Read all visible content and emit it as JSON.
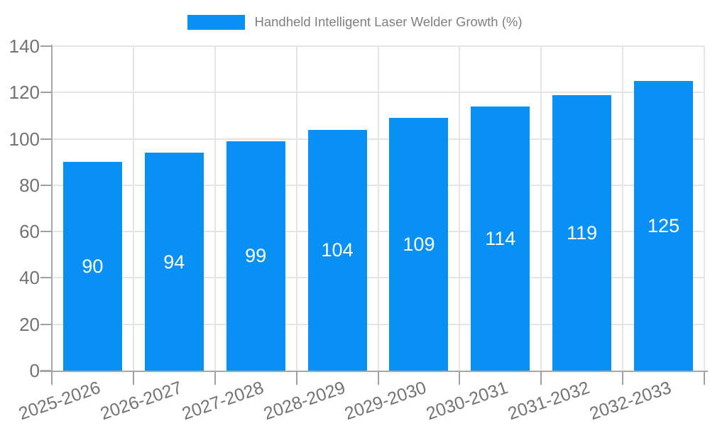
{
  "legend": {
    "label": "Handheld Intelligent Laser Welder Growth (%)"
  },
  "chart_data": {
    "type": "bar",
    "title": "",
    "xlabel": "",
    "ylabel": "",
    "categories": [
      "2025-2026",
      "2026-2027",
      "2027-2028",
      "2028-2029",
      "2029-2030",
      "2030-2031",
      "2031-2032",
      "2032-2033"
    ],
    "values": [
      90,
      94,
      99,
      104,
      109,
      114,
      119,
      125
    ],
    "series_name": "Handheld Intelligent Laser Welder Growth (%)",
    "ylim": [
      0,
      140
    ],
    "ytick_step": 20,
    "yticks": [
      0,
      20,
      40,
      60,
      80,
      100,
      120,
      140
    ],
    "grid": true,
    "legend_position": "top-center",
    "bar_label_position": "inside-center",
    "x_label_rotation_deg": -19
  },
  "colors": {
    "bar": "#0890F5",
    "bar_label": "#ffffff",
    "grid": "#e5e5e5",
    "axis": "#a8a8a8",
    "tick": "#a0a0a0",
    "tick_label": "#737373",
    "legend_text": "#7f7f7f",
    "background": "#ffffff"
  }
}
